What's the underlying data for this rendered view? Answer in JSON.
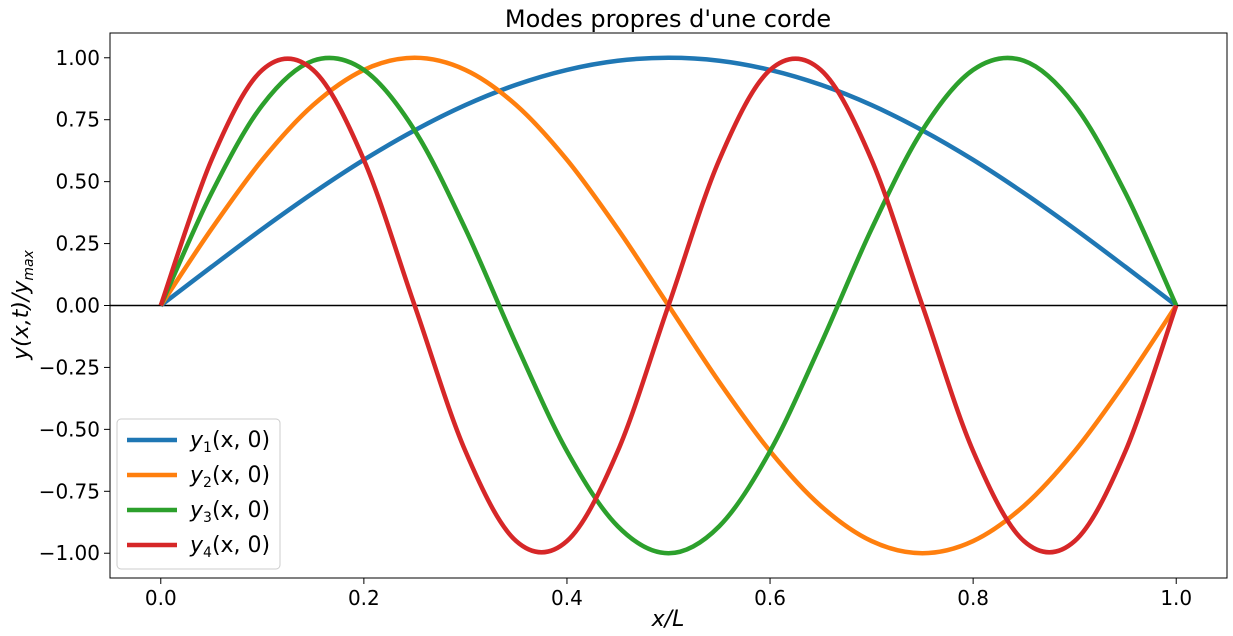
{
  "chart_data": {
    "type": "line",
    "title": "Modes propres d'une corde",
    "xlabel": {
      "base": "x/L"
    },
    "ylabel": {
      "base": "y(x,t)/y",
      "sub": "max"
    },
    "xlim": [
      -0.05,
      1.05
    ],
    "ylim": [
      -1.1,
      1.1
    ],
    "xticks": [
      0.0,
      0.2,
      0.4,
      0.6,
      0.8,
      1.0
    ],
    "xtick_labels": [
      "0.0",
      "0.2",
      "0.4",
      "0.6",
      "0.8",
      "1.0"
    ],
    "yticks": [
      1.0,
      0.75,
      0.5,
      0.25,
      0.0,
      -0.25,
      -0.5,
      -0.75,
      -1.0
    ],
    "ytick_labels": [
      "1.00",
      "0.75",
      "0.50",
      "0.25",
      "0.00",
      "−0.25",
      "−0.50",
      "−0.75",
      "−1.00"
    ],
    "grid": false,
    "legend_position": "lower-left",
    "x": [
      0.0,
      0.05,
      0.1,
      0.15,
      0.2,
      0.25,
      0.3,
      0.35,
      0.4,
      0.45,
      0.5,
      0.55,
      0.6,
      0.65,
      0.7,
      0.75,
      0.8,
      0.85,
      0.9,
      0.95,
      1.0
    ],
    "series": [
      {
        "name": {
          "base": "y",
          "sub": "1",
          "rest": "(x, 0)"
        },
        "color": "#1f77b4",
        "values": [
          0.0,
          0.156,
          0.309,
          0.454,
          0.588,
          0.707,
          0.809,
          0.891,
          0.951,
          0.988,
          1.0,
          0.988,
          0.951,
          0.891,
          0.809,
          0.707,
          0.588,
          0.454,
          0.309,
          0.156,
          0.0
        ]
      },
      {
        "name": {
          "base": "y",
          "sub": "2",
          "rest": "(x, 0)"
        },
        "color": "#ff7f0e",
        "values": [
          0.0,
          0.309,
          0.588,
          0.809,
          0.951,
          1.0,
          0.951,
          0.809,
          0.588,
          0.309,
          0.0,
          -0.309,
          -0.588,
          -0.809,
          -0.951,
          -1.0,
          -0.951,
          -0.809,
          -0.588,
          -0.309,
          0.0
        ]
      },
      {
        "name": {
          "base": "y",
          "sub": "3",
          "rest": "(x, 0)"
        },
        "color": "#2ca02c",
        "values": [
          0.0,
          0.454,
          0.809,
          0.988,
          0.951,
          0.707,
          0.309,
          -0.156,
          -0.588,
          -0.891,
          -1.0,
          -0.891,
          -0.588,
          -0.156,
          0.309,
          0.707,
          0.951,
          0.988,
          0.809,
          0.454,
          0.0
        ]
      },
      {
        "name": {
          "base": "y",
          "sub": "4",
          "rest": "(x, 0)"
        },
        "color": "#d62728",
        "values": [
          0.0,
          0.588,
          0.951,
          0.951,
          0.588,
          0.0,
          -0.588,
          -0.951,
          -0.951,
          -0.588,
          0.0,
          0.588,
          0.951,
          0.951,
          0.588,
          0.0,
          -0.588,
          -0.951,
          -0.951,
          -0.588,
          0.0
        ]
      }
    ],
    "zero_line_color": "#000000",
    "axis_color": "#000000"
  }
}
